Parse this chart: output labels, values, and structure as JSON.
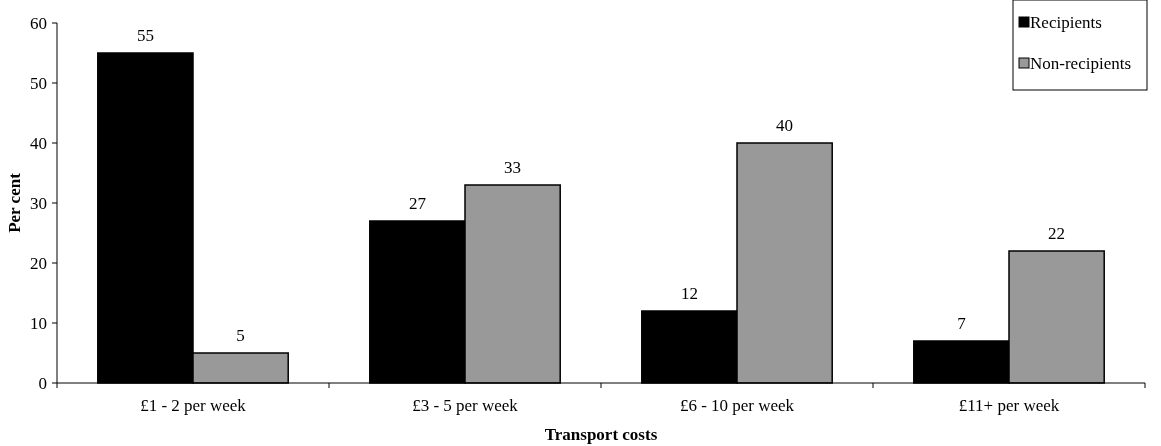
{
  "chart_data": {
    "type": "bar",
    "xlabel": "Transport costs",
    "ylabel": "Per cent",
    "categories": [
      "£1 - 2 per week",
      "£3 - 5 per week",
      "£6 - 10 per week",
      "£11+ per week"
    ],
    "series": [
      {
        "name": "Recipients",
        "color": "#000000",
        "values": [
          55,
          27,
          12,
          7
        ]
      },
      {
        "name": "Non-recipients",
        "color": "#999999",
        "values": [
          5,
          33,
          40,
          22
        ]
      }
    ],
    "ylim": [
      0,
      60
    ],
    "yticks": [
      0,
      10,
      20,
      30,
      40,
      50,
      60
    ],
    "grid": false,
    "legend": "top right",
    "data_labels": true
  }
}
